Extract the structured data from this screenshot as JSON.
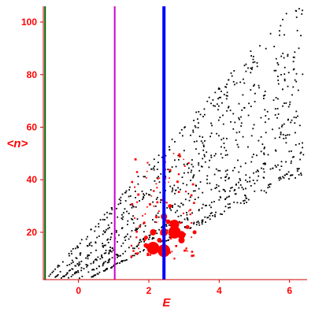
{
  "chart_data": {
    "type": "scatter",
    "title": "",
    "xlabel": "E",
    "ylabel": "<n>",
    "xlim": [
      -1.0,
      6.5
    ],
    "ylim": [
      2,
      106
    ],
    "x_ticks": [
      0,
      2,
      4,
      6
    ],
    "x_tick_labels": [
      "0",
      "2",
      "4",
      "6"
    ],
    "y_ticks": [
      20,
      40,
      60,
      80,
      100
    ],
    "y_tick_labels": [
      "20",
      "40",
      "60",
      "80",
      "100"
    ],
    "grid": false,
    "legend": "none",
    "colors": {
      "axis": "#cc0000",
      "ticklabel": "#ff0000",
      "black_points": "#000000",
      "red_points": "#ff0000",
      "line_green": "#006400",
      "line_magenta": "#cc00cc",
      "line_blue": "#0000ff"
    },
    "vertical_lines": [
      {
        "x": -0.95,
        "color": "#006400",
        "width": 2
      },
      {
        "x": 1.03,
        "color": "#cc00cc",
        "width": 2
      },
      {
        "x": 2.43,
        "color": "#0000ff",
        "width": 4
      }
    ],
    "black_bands": [
      {
        "x0": -0.9,
        "x1": 6.4,
        "y0": 2.5,
        "y1": 105,
        "spread": 0.06,
        "count": 170
      },
      {
        "x0": -0.7,
        "x1": 6.4,
        "y0": 2.5,
        "y1": 90,
        "spread": 0.07,
        "count": 160
      },
      {
        "x0": -0.5,
        "x1": 6.4,
        "y0": 2.5,
        "y1": 77,
        "spread": 0.08,
        "count": 160
      },
      {
        "x0": -0.3,
        "x1": 6.4,
        "y0": 2.5,
        "y1": 63,
        "spread": 0.09,
        "count": 170
      },
      {
        "x0": 0.0,
        "x1": 6.4,
        "y0": 2.5,
        "y1": 52,
        "spread": 0.07,
        "count": 170
      },
      {
        "x0": 0.3,
        "x1": 6.4,
        "y0": 2.5,
        "y1": 44,
        "spread": 0.05,
        "count": 150
      }
    ],
    "red_points": [
      {
        "x": 2.12,
        "y": 14,
        "size": 8
      },
      {
        "x": 2.43,
        "y": 13,
        "size": 8
      },
      {
        "x": 2.73,
        "y": 23,
        "size": 6
      },
      {
        "x": 2.73,
        "y": 20,
        "size": 8
      },
      {
        "x": 2.93,
        "y": 19,
        "size": 5
      },
      {
        "x": 2.93,
        "y": 17,
        "size": 4
      },
      {
        "x": 2.12,
        "y": 20,
        "size": 4
      },
      {
        "x": 2.43,
        "y": 20,
        "size": 5
      },
      {
        "x": 2.43,
        "y": 26,
        "size": 4
      },
      {
        "x": 1.92,
        "y": 15,
        "size": 3
      },
      {
        "x": 1.92,
        "y": 18,
        "size": 2.5
      },
      {
        "x": 2.3,
        "y": 17,
        "size": 3
      },
      {
        "x": 2.55,
        "y": 24,
        "size": 3
      },
      {
        "x": 3.1,
        "y": 22,
        "size": 2.5
      },
      {
        "x": 3.3,
        "y": 20,
        "size": 2.5
      },
      {
        "x": 2.6,
        "y": 30,
        "size": 2.5
      }
    ],
    "red_small_count": 90,
    "red_small_region": {
      "x0": 1.5,
      "x1": 3.3,
      "y0": 10,
      "y1": 50
    }
  }
}
